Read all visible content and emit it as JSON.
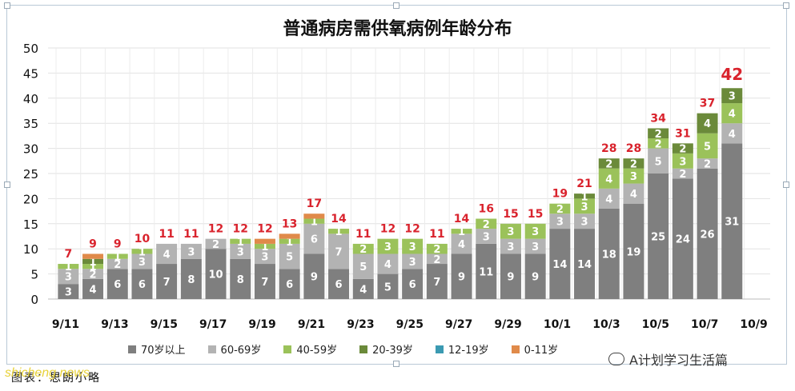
{
  "chart_data": {
    "type": "bar",
    "stacked": true,
    "title": "普通病房需供氧病例年龄分布",
    "ylim": [
      0,
      50
    ],
    "yticks": [
      0,
      5,
      10,
      15,
      20,
      25,
      30,
      35,
      40,
      45,
      50
    ],
    "grid": true,
    "legend_position": "bottom",
    "xtick_labels": [
      "9/11",
      "9/13",
      "9/15",
      "9/17",
      "9/19",
      "9/21",
      "9/23",
      "9/25",
      "9/27",
      "9/29",
      "10/1",
      "10/3",
      "10/5",
      "10/7",
      "10/9"
    ],
    "categories": [
      "9/11",
      "9/12",
      "9/13",
      "9/14",
      "9/15",
      "9/16",
      "9/17",
      "9/18",
      "9/19",
      "9/20",
      "9/21",
      "9/22",
      "9/23",
      "9/24",
      "9/25",
      "9/26",
      "9/27",
      "9/28",
      "9/29",
      "9/30",
      "10/1",
      "10/2",
      "10/3",
      "10/4",
      "10/5",
      "10/6",
      "10/7",
      "10/8"
    ],
    "totals": [
      7,
      9,
      9,
      10,
      11,
      11,
      12,
      12,
      12,
      13,
      17,
      14,
      11,
      12,
      12,
      11,
      14,
      16,
      15,
      15,
      19,
      21,
      28,
      28,
      34,
      31,
      37,
      42
    ],
    "series": [
      {
        "name": "70岁以上",
        "color": "#7f7f7f",
        "values": [
          3,
          4,
          6,
          6,
          7,
          8,
          10,
          8,
          7,
          6,
          9,
          6,
          4,
          5,
          6,
          7,
          9,
          11,
          9,
          9,
          14,
          14,
          18,
          19,
          25,
          24,
          26,
          31
        ]
      },
      {
        "name": "60-69岁",
        "color": "#b3b3b3",
        "values": [
          3,
          2,
          2,
          3,
          4,
          3,
          2,
          3,
          3,
          5,
          6,
          7,
          5,
          4,
          3,
          2,
          4,
          3,
          3,
          3,
          3,
          3,
          4,
          4,
          5,
          2,
          2,
          4
        ]
      },
      {
        "name": "40-59岁",
        "color": "#9bc25a",
        "values": [
          1,
          1,
          1,
          1,
          0,
          0,
          0,
          1,
          1,
          1,
          1,
          1,
          2,
          3,
          3,
          2,
          1,
          2,
          3,
          3,
          2,
          3,
          4,
          3,
          2,
          3,
          5,
          4
        ]
      },
      {
        "name": "20-39岁",
        "color": "#6b8a3a",
        "values": [
          0,
          1,
          0,
          0,
          0,
          0,
          0,
          0,
          0,
          0,
          0,
          0,
          0,
          0,
          0,
          0,
          0,
          0,
          0,
          0,
          0,
          1,
          2,
          2,
          2,
          2,
          4,
          3
        ]
      },
      {
        "name": "12-19岁",
        "color": "#3b9ab2",
        "values": [
          0,
          0,
          0,
          0,
          0,
          0,
          0,
          0,
          0,
          0,
          0,
          0,
          0,
          0,
          0,
          0,
          0,
          0,
          0,
          0,
          0,
          0,
          0,
          0,
          0,
          0,
          0,
          0
        ]
      },
      {
        "name": "0-11岁",
        "color": "#e08a4a",
        "values": [
          0,
          1,
          0,
          0,
          0,
          0,
          0,
          0,
          1,
          1,
          1,
          0,
          0,
          0,
          0,
          0,
          0,
          0,
          0,
          0,
          0,
          0,
          0,
          0,
          0,
          0,
          0,
          0
        ]
      }
    ],
    "labeled_series": [
      0,
      1,
      2,
      3
    ],
    "highlight_last_total": true
  },
  "caption_text": "图表：思朗小略",
  "watermark_text": "shicheng.news",
  "brand_text": "A计划学习生活篇",
  "colors": {
    "total_label": "#d9232d",
    "bar_label": "#ffffff"
  }
}
